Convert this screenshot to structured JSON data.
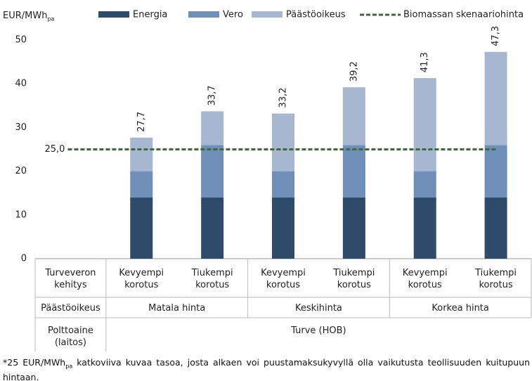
{
  "chart_data": {
    "type": "bar",
    "stacked": true,
    "y_label": "EUR/MWh",
    "y_label_sub": "pa",
    "categories": [
      "Kevyempi korotus",
      "Tiukempi korotus",
      "Kevyempi korotus",
      "Tiukempi korotus",
      "Kevyempi korotus",
      "Tiukempi korotus"
    ],
    "series": [
      {
        "name": "Energia",
        "color": "#2e4b6b",
        "values": [
          14,
          14,
          14,
          14,
          14,
          14
        ]
      },
      {
        "name": "Vero",
        "color": "#6f8fb8",
        "values": [
          6,
          12,
          6,
          12,
          6,
          12
        ]
      },
      {
        "name": "Päästöoikeus",
        "color": "#a8b7d1",
        "values": [
          7.7,
          7.7,
          13.2,
          13.2,
          21.3,
          21.3
        ]
      }
    ],
    "total_labels": [
      "27,7",
      "33,7",
      "33,2",
      "39,2",
      "41,3",
      "47,3"
    ],
    "reference_line": {
      "name": "Biomassan skenaariohinta",
      "value": 25,
      "label": "25,0",
      "color": "#3e6a3a"
    },
    "row_headers": [
      "Turveveron kehitys",
      "Päästöoikeus",
      "Polttoaine (laitos)"
    ],
    "groups": [
      {
        "label": "Matala hinta",
        "span": 2
      },
      {
        "label": "Keskihinta",
        "span": 2
      },
      {
        "label": "Korkea hinta",
        "span": 2
      }
    ],
    "fuel_group": {
      "label": "Turve (HOB)",
      "span": 6
    },
    "ylim": [
      0,
      50
    ],
    "yticks": [
      0,
      10,
      20,
      30,
      40,
      50
    ],
    "grid": false
  },
  "footnote": {
    "prefix": "*25 EUR/MWh",
    "sub": "pa",
    "text": " katkoviiva kuvaa tasoa, josta alkaen voi puustamaksukyvyllä olla vaikutusta teollisuuden kuitupuun hintaan."
  }
}
